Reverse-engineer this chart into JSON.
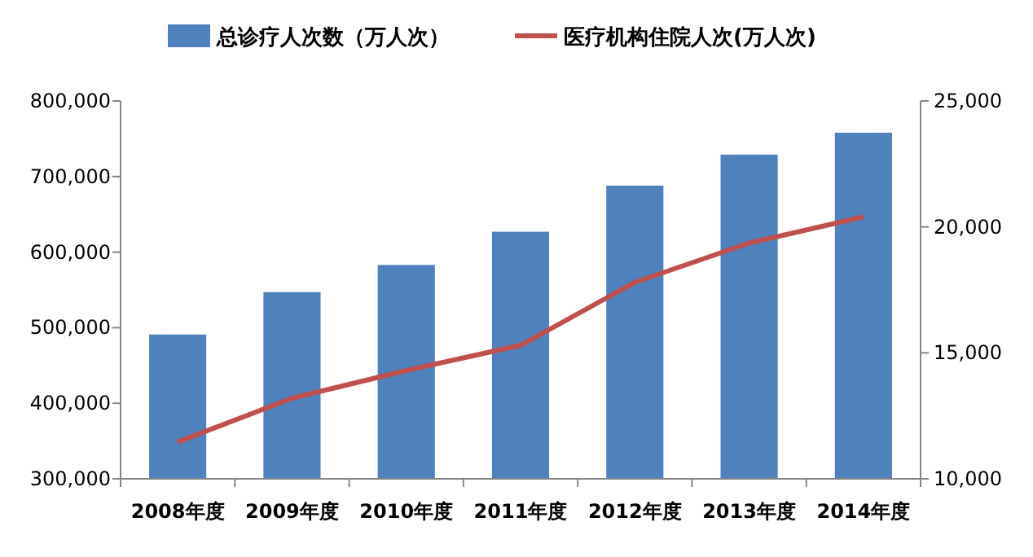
{
  "chart_data": {
    "type": "bar",
    "categories": [
      "2008年度",
      "2009年度",
      "2010年度",
      "2011年度",
      "2012年度",
      "2013年度",
      "2014年度"
    ],
    "series": [
      {
        "name": "总诊疗人次数（万人次）",
        "color": "#4f81bd",
        "values": [
          491000,
          547000,
          583000,
          627000,
          688000,
          729000,
          758000
        ]
      },
      {
        "name": "医疗机构住院人次(万人次)",
        "type": "line",
        "axis": "y2",
        "color": "#c0504d",
        "values": [
          11460,
          13200,
          14300,
          15300,
          17800,
          19360,
          20400
        ]
      }
    ],
    "ylim": [
      300000,
      800000
    ],
    "yticks": [
      {
        "value": 300000,
        "label": "300,000"
      },
      {
        "value": 400000,
        "label": "400,000"
      },
      {
        "value": 500000,
        "label": "500,000"
      },
      {
        "value": 600000,
        "label": "600,000"
      },
      {
        "value": 700000,
        "label": "700,000"
      },
      {
        "value": 800000,
        "label": "800,000"
      }
    ],
    "y2lim": [
      10000,
      25000
    ],
    "y2ticks": [
      {
        "value": 10000,
        "label": "10,000"
      },
      {
        "value": 15000,
        "label": "15,000"
      },
      {
        "value": 20000,
        "label": "20,000"
      },
      {
        "value": 25000,
        "label": "25,000"
      }
    ],
    "legend": "top",
    "grid": false,
    "line_style": "solid"
  }
}
